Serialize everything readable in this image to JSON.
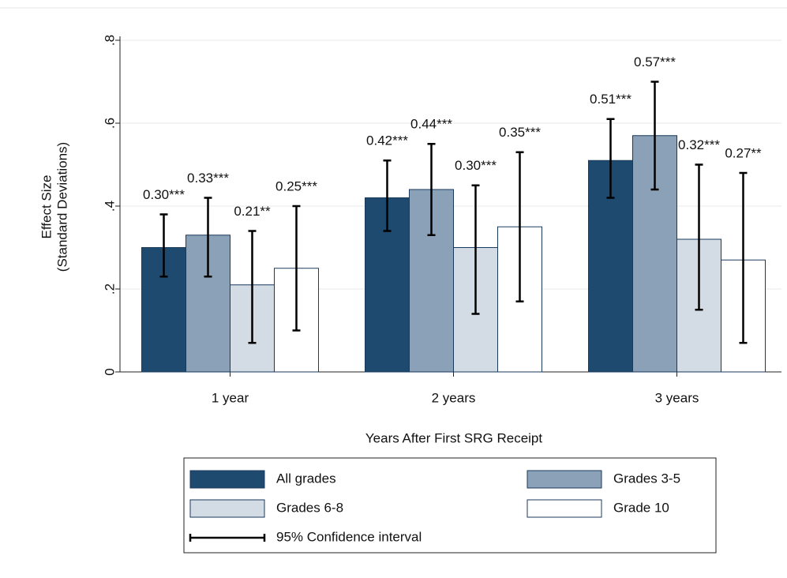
{
  "chart_data": {
    "type": "bar",
    "categories": [
      "1 year",
      "2 years",
      "3 years"
    ],
    "x_label": "Years After First SRG Receipt",
    "y_label": [
      "Effect Size",
      "(Standard Deviations)"
    ],
    "ylim": [
      0,
      0.8
    ],
    "yticks": [
      0,
      {
        "value": 0.2,
        "label": ".2"
      },
      {
        "value": 0.4,
        "label": ".4"
      },
      {
        "value": 0.6,
        "label": ".6"
      },
      {
        "value": 0.8,
        "label": ".8"
      }
    ],
    "grid": true,
    "ci_legend": "95% Confidence interval",
    "series": [
      {
        "name": "All grades",
        "color": "#1f4a70",
        "values": [
          0.3,
          0.42,
          0.51
        ],
        "value_labels": [
          "0.30***",
          "0.42***",
          "0.51***"
        ],
        "ci": [
          [
            0.23,
            0.38
          ],
          [
            0.34,
            0.51
          ],
          [
            0.42,
            0.61
          ]
        ]
      },
      {
        "name": "Grades 3-5",
        "color": "#8aa1b8",
        "values": [
          0.33,
          0.44,
          0.57
        ],
        "value_labels": [
          "0.33***",
          "0.44***",
          "0.57***"
        ],
        "ci": [
          [
            0.23,
            0.42
          ],
          [
            0.33,
            0.55
          ],
          [
            0.44,
            0.7
          ]
        ]
      },
      {
        "name": "Grades 6-8",
        "color": "#d3dbe4",
        "values": [
          0.21,
          0.3,
          0.32
        ],
        "value_labels": [
          "0.21**",
          "0.30***",
          "0.32***"
        ],
        "ci": [
          [
            0.07,
            0.34
          ],
          [
            0.14,
            0.45
          ],
          [
            0.15,
            0.5
          ]
        ]
      },
      {
        "name": "Grade 10",
        "color": "#ffffff",
        "values": [
          0.25,
          0.35,
          0.27
        ],
        "value_labels": [
          "0.25***",
          "0.35***",
          "0.27**"
        ],
        "ci": [
          [
            0.1,
            0.4
          ],
          [
            0.17,
            0.53
          ],
          [
            0.07,
            0.48
          ]
        ]
      }
    ]
  }
}
